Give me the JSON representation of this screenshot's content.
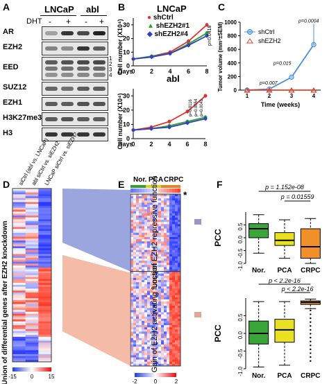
{
  "panels": {
    "A": {
      "letter": "A",
      "groups": [
        "LNCaP",
        "abl"
      ],
      "dht_label": "DHT",
      "dht_signs": [
        "-",
        "+",
        "-",
        "+"
      ],
      "rows": [
        {
          "name": "AR"
        },
        {
          "name": "EZH2"
        },
        {
          "name": "EED",
          "bands_marker": [
            "1",
            "2",
            "3",
            "4"
          ]
        },
        {
          "name": "SUZ12"
        },
        {
          "name": "EZH1"
        },
        {
          "name": "H3K27me3"
        },
        {
          "name": "H3"
        }
      ]
    },
    "B": {
      "letter": "B",
      "top_title": "LNCaP",
      "bottom_title": "abl",
      "legend": [
        "shCtrl",
        "shEZH2#1",
        "shEZH2#4"
      ],
      "ylabel": "Cell number (X10⁴)",
      "xlabel": "Days",
      "top_pvalue": "p=0.0418",
      "bottom_pvalues": [
        "p=0.0116",
        "p=0.0054",
        "p=0.0041"
      ]
    },
    "C": {
      "letter": "C",
      "legend": [
        "shCtrl",
        "shEZH2"
      ],
      "ylabel": "Tumor volume (mm³±SEM)",
      "xlabel": "Time (weeks)",
      "pvalues": [
        "p=0.007",
        "p=0.015",
        "p=0.0004"
      ]
    },
    "D": {
      "letter": "D",
      "col_labels": [
        "siCtrl (abl vs. LNCaP)",
        "abl siCtrl vs. siEZH2",
        "LNCaP siCtrl vs. siEZH2"
      ],
      "side_label": "Union of differential genes after EZH2 knockdown",
      "scale_ticks": [
        "-15",
        "0",
        "15"
      ]
    },
    "E": {
      "letter": "E",
      "groups": [
        "Nor.",
        "PCA",
        "CRPC"
      ],
      "star": "*",
      "top_label": "Loss of EZH2 repressive function",
      "bottom_label": "Gain of EZH2 activating function",
      "scale_ticks": [
        "-2",
        "0",
        "2"
      ]
    },
    "F": {
      "letter": "F",
      "ylabel": "PCC",
      "top_p1": "p = 1.152e-08",
      "top_p2": "p = 0.01559",
      "bottom_p1": "p < 2.2e-16",
      "bottom_p2": "p < 2.2e-16",
      "categories": [
        "Nor.",
        "PCA",
        "CRPC"
      ]
    }
  },
  "chart_data": [
    {
      "type": "line",
      "panel": "B-top",
      "title": "LNCaP",
      "xlabel": "Days",
      "ylabel": "Cell number (X10⁴)",
      "x": [
        0,
        2,
        4,
        6,
        8
      ],
      "yticks": [
        0,
        10,
        20,
        30
      ],
      "ylim": [
        0,
        35
      ],
      "series": [
        {
          "name": "shCtrl",
          "color": "#e03030",
          "values": [
            5,
            7,
            10,
            18,
            30
          ]
        },
        {
          "name": "shEZH2#1",
          "color": "#2aa02a",
          "values": [
            5,
            7,
            9,
            16,
            24
          ]
        },
        {
          "name": "shEZH2#4",
          "color": "#3040c0",
          "values": [
            5,
            6.5,
            9,
            15,
            22
          ]
        }
      ]
    },
    {
      "type": "line",
      "panel": "B-bottom",
      "title": "abl",
      "xlabel": "Days",
      "ylabel": "Cell number (X10⁴)",
      "x": [
        0,
        2,
        4,
        6,
        8
      ],
      "yticks": [
        0,
        10,
        20,
        30
      ],
      "ylim": [
        0,
        35
      ],
      "series": [
        {
          "name": "shCtrl",
          "color": "#e03030",
          "values": [
            6,
            8,
            12,
            19,
            30
          ]
        },
        {
          "name": "shEZH2#1",
          "color": "#2aa02a",
          "values": [
            6,
            7,
            9,
            12,
            15
          ]
        },
        {
          "name": "shEZH2#4",
          "color": "#3040c0",
          "values": [
            6,
            7,
            8,
            11,
            14
          ]
        }
      ]
    },
    {
      "type": "line",
      "panel": "C",
      "xlabel": "Time (weeks)",
      "ylabel": "Tumor volume (mm³±SEM)",
      "x": [
        1,
        2,
        3,
        4
      ],
      "yticks": [
        0,
        200,
        400,
        600,
        800,
        1000
      ],
      "ylim": [
        0,
        1000
      ],
      "series": [
        {
          "name": "shCtrl",
          "color": "#4a8fd8",
          "values": [
            0,
            15,
            190,
            670
          ]
        },
        {
          "name": "shEZH2",
          "color": "#e04020",
          "values": [
            0,
            0,
            0,
            0
          ]
        }
      ]
    },
    {
      "type": "box",
      "panel": "F-top",
      "ylabel": "PCC",
      "categories": [
        "Nor.",
        "PCA",
        "CRPC"
      ],
      "yticks": [
        -1.0,
        -0.5,
        0.0,
        0.5
      ],
      "ylim": [
        -1.0,
        1.0
      ],
      "boxes": [
        {
          "name": "Nor.",
          "color": "#3aa63a",
          "q1": 0.0,
          "median": 0.35,
          "q3": 0.55,
          "min": -0.6,
          "max": 0.9
        },
        {
          "name": "PCA",
          "color": "#e8e020",
          "q1": -0.3,
          "median": -0.1,
          "q3": 0.2,
          "min": -0.8,
          "max": 0.7
        },
        {
          "name": "CRPC",
          "color": "#f0902a",
          "q1": -0.8,
          "median": -0.35,
          "q3": 0.35,
          "min": -1.0,
          "max": 0.75
        }
      ]
    },
    {
      "type": "box",
      "panel": "F-bottom",
      "ylabel": "PCC",
      "categories": [
        "Nor.",
        "PCA",
        "CRPC"
      ],
      "yticks": [
        -1.0,
        -0.5,
        0.0,
        0.5
      ],
      "ylim": [
        -1.0,
        1.0
      ],
      "boxes": [
        {
          "name": "Nor.",
          "color": "#3aa63a",
          "q1": -0.3,
          "median": 0.0,
          "q3": 0.35,
          "min": -0.95,
          "max": 0.9
        },
        {
          "name": "PCA",
          "color": "#e8e020",
          "q1": -0.25,
          "median": 0.1,
          "q3": 0.4,
          "min": -0.9,
          "max": 0.9
        },
        {
          "name": "CRPC",
          "color": "#f0902a",
          "q1": 0.82,
          "median": 0.88,
          "q3": 0.92,
          "min": 0.7,
          "max": 0.97
        }
      ]
    }
  ]
}
